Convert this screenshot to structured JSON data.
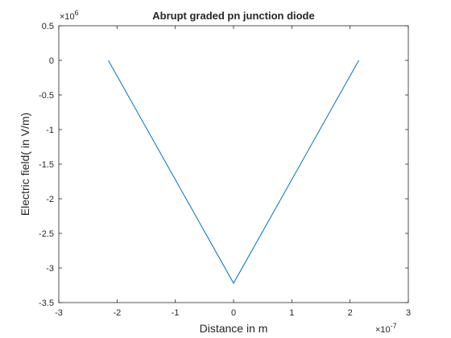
{
  "chart_data": {
    "type": "line",
    "title": "Abrupt graded pn junction diode",
    "xlabel": "Distance in m",
    "ylabel": "Electric field( in V/m)",
    "x_exponent": "-7",
    "y_exponent": "6",
    "xlim": [
      -3,
      3
    ],
    "ylim": [
      -3.5,
      0.5
    ],
    "xticks": [
      -3,
      -2,
      -1,
      0,
      1,
      2,
      3
    ],
    "xtick_labels": [
      "-3",
      "-2",
      "-1",
      "0",
      "1",
      "2",
      "3"
    ],
    "yticks": [
      0.5,
      0,
      -0.5,
      -1,
      -1.5,
      -2,
      -2.5,
      -3,
      -3.5
    ],
    "ytick_labels": [
      "0.5",
      "0",
      "-0.5",
      "-1",
      "-1.5",
      "-2",
      "-2.5",
      "-3",
      "-3.5"
    ],
    "grid": false,
    "series": [
      {
        "color": "#0072bd",
        "x": [
          -2.15,
          0,
          2.15
        ],
        "y": [
          0,
          -3.22,
          0
        ]
      }
    ]
  }
}
